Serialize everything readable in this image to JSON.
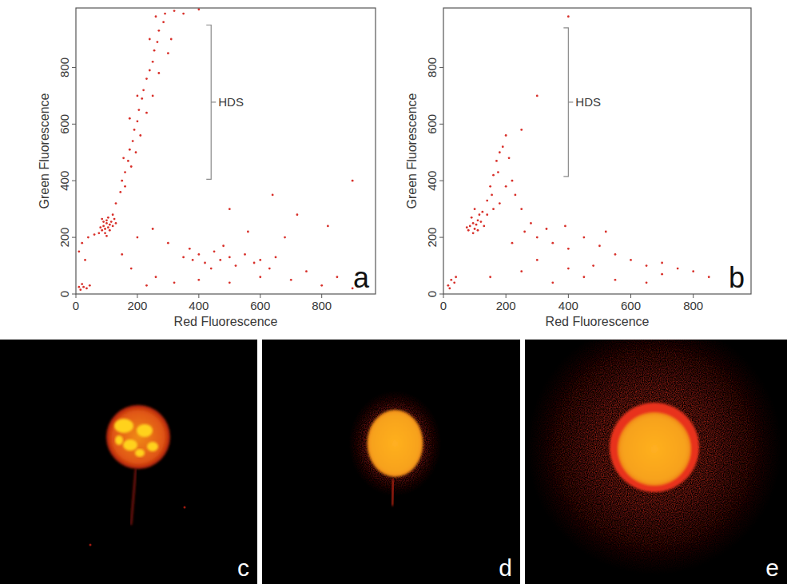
{
  "chart_data": [
    {
      "type": "scatter",
      "panel": "a",
      "xlabel": "Red Fluorescence",
      "ylabel": "Green Fluorescence",
      "xlim": [
        0,
        975
      ],
      "ylim": [
        0,
        1010
      ],
      "xticks": [
        0,
        200,
        400,
        600,
        800
      ],
      "yticks": [
        0,
        200,
        400,
        600,
        800
      ],
      "grid": false,
      "annotations": [
        {
          "text": "HDS",
          "x": 440,
          "y1": 405,
          "y2": 950
        }
      ],
      "series": [
        {
          "color": "#d8302a",
          "marker": "dot",
          "x": [
            90,
            95,
            100,
            105,
            110,
            85,
            100,
            115,
            95,
            120,
            80,
            105,
            125,
            90,
            110,
            75,
            130,
            100,
            85,
            120,
            130,
            145,
            150,
            160,
            170,
            175,
            185,
            190,
            200,
            205,
            215,
            220,
            230,
            240,
            250,
            255,
            265,
            270,
            285,
            290,
            180,
            195,
            160,
            210,
            230,
            250,
            270,
            300,
            240,
            200,
            175,
            260,
            310,
            155,
            20,
            40,
            60,
            10,
            30,
            15,
            25,
            35,
            20,
            45,
            10,
            350,
            380,
            400,
            420,
            450,
            470,
            500,
            520,
            550,
            580,
            600,
            630,
            650,
            370,
            440,
            480,
            200,
            250,
            300,
            180,
            260,
            320,
            400,
            500,
            600,
            700,
            750,
            800,
            850,
            680,
            900,
            560,
            230,
            150,
            320,
            350,
            400,
            500,
            640,
            720,
            820,
            900
          ],
          "values": [
            240,
            230,
            250,
            235,
            245,
            225,
            260,
            255,
            215,
            240,
            235,
            270,
            265,
            255,
            225,
            215,
            250,
            205,
            265,
            280,
            320,
            360,
            400,
            430,
            470,
            510,
            540,
            580,
            610,
            650,
            690,
            720,
            760,
            790,
            820,
            860,
            890,
            930,
            960,
            990,
            450,
            500,
            380,
            560,
            640,
            700,
            780,
            850,
            900,
            700,
            620,
            980,
            900,
            480,
            180,
            200,
            210,
            150,
            120,
            15,
            25,
            20,
            35,
            30,
            25,
            130,
            120,
            140,
            110,
            150,
            120,
            130,
            100,
            140,
            110,
            120,
            90,
            130,
            160,
            90,
            170,
            200,
            230,
            180,
            90,
            60,
            40,
            50,
            40,
            60,
            50,
            80,
            30,
            60,
            200,
            20,
            220,
            30,
            140,
            1000,
            990,
            1005,
            300,
            350,
            280,
            240,
            400
          ]
        }
      ]
    },
    {
      "type": "scatter",
      "panel": "b",
      "xlabel": "Red Fluorescence",
      "ylabel": "Green Fluorescence",
      "xlim": [
        0,
        985
      ],
      "ylim": [
        0,
        1010
      ],
      "xticks": [
        0,
        200,
        400,
        600,
        800
      ],
      "yticks": [
        0,
        200,
        400,
        600,
        800
      ],
      "grid": false,
      "annotations": [
        {
          "text": "HDS",
          "x": 400,
          "y1": 415,
          "y2": 940
        }
      ],
      "series": [
        {
          "color": "#d8302a",
          "marker": "dot",
          "x": [
            85,
            95,
            100,
            110,
            90,
            105,
            120,
            80,
            115,
            100,
            95,
            130,
            75,
            110,
            125,
            140,
            150,
            160,
            170,
            180,
            190,
            200,
            175,
            155,
            210,
            220,
            230,
            250,
            200,
            260,
            280,
            300,
            350,
            400,
            450,
            500,
            520,
            550,
            600,
            650,
            700,
            750,
            800,
            220,
            330,
            480,
            150,
            250,
            350,
            450,
            550,
            650,
            700,
            850,
            300,
            400,
            15,
            25,
            35,
            20,
            40,
            250,
            300,
            400,
            390,
            180,
            140,
            160
          ],
          "values": [
            240,
            250,
            230,
            260,
            270,
            245,
            255,
            225,
            280,
            300,
            215,
            240,
            235,
            225,
            290,
            330,
            380,
            420,
            470,
            500,
            520,
            560,
            430,
            350,
            480,
            400,
            350,
            300,
            380,
            220,
            250,
            200,
            180,
            160,
            200,
            170,
            220,
            140,
            120,
            100,
            110,
            90,
            80,
            180,
            230,
            100,
            60,
            80,
            40,
            60,
            50,
            40,
            70,
            60,
            120,
            90,
            30,
            50,
            40,
            20,
            60,
            580,
            700,
            980,
            240,
            320,
            280,
            300
          ]
        }
      ]
    }
  ],
  "images": [
    {
      "label": "c"
    },
    {
      "label": "d"
    },
    {
      "label": "e"
    }
  ]
}
